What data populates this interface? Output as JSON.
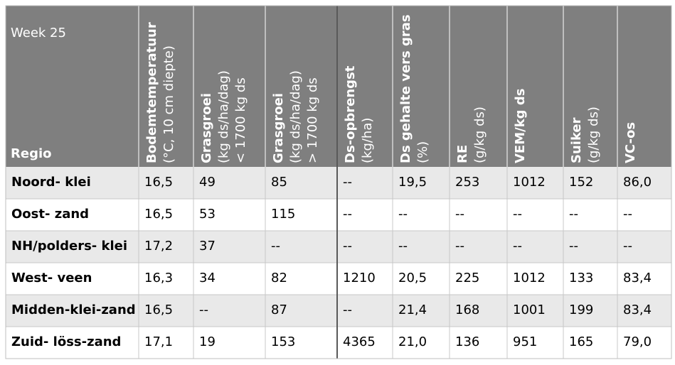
{
  "header": {
    "week": "Week 25",
    "region": "Regio",
    "columns": [
      {
        "title": "Bodemtemperatuur",
        "lines": [
          "(°C, 10 cm diepte)"
        ]
      },
      {
        "title": "Grasgroei",
        "lines": [
          "(kg ds/ha/dag)",
          "< 1700 kg ds"
        ]
      },
      {
        "title": "Grasgroei",
        "lines": [
          "(kg ds/ha/dag)",
          "> 1700 kg ds"
        ]
      },
      {
        "title": "Ds-opbrengst",
        "lines": [
          "(kg/ha)"
        ]
      },
      {
        "title": "Ds gehalte vers gras",
        "lines": [
          "(%)"
        ]
      },
      {
        "title": "RE",
        "lines": [
          "(g/kg ds)"
        ]
      },
      {
        "title": "VEM/kg ds",
        "lines": []
      },
      {
        "title": "Suiker",
        "lines": [
          "(g/kg ds)"
        ]
      },
      {
        "title": "VC-os",
        "lines": []
      }
    ]
  },
  "table": {
    "rows": [
      [
        "Noord- klei",
        "16,5",
        "49",
        "85",
        "--",
        "19,5",
        "253",
        "1012",
        "152",
        "86,0"
      ],
      [
        "Oost- zand",
        "16,5",
        "53",
        "115",
        "--",
        "--",
        "--",
        "--",
        "--",
        "--"
      ],
      [
        "NH/polders- klei",
        "17,2",
        "37",
        "--",
        "--",
        "--",
        "--",
        "--",
        "--",
        "--"
      ],
      [
        "West- veen",
        "16,3",
        "34",
        "82",
        "1210",
        "20,5",
        "225",
        "1012",
        "133",
        "83,4"
      ],
      [
        "Midden-klei-zand",
        "16,5",
        "--",
        "87",
        "--",
        "21,4",
        "168",
        "1001",
        "199",
        "83,4"
      ],
      [
        "Zuid- löss-zand",
        "17,1",
        "19",
        "153",
        "4365",
        "21,0",
        "136",
        "951",
        "165",
        "79,0"
      ]
    ]
  }
}
